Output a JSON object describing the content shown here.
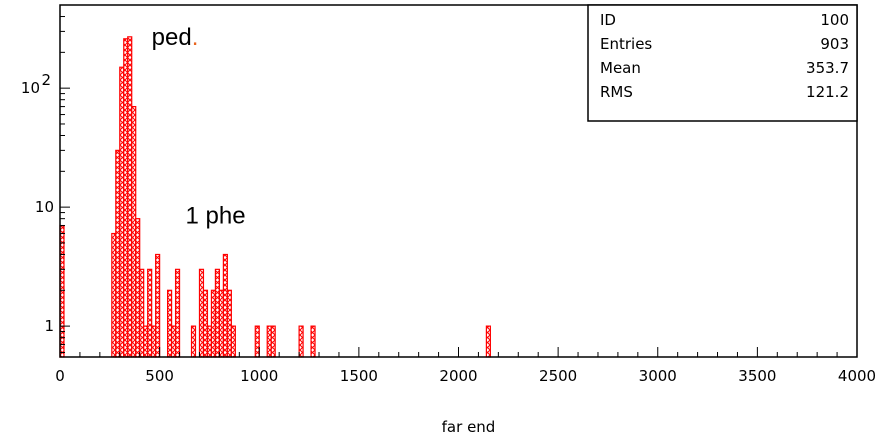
{
  "chart_data": {
    "type": "bar",
    "xlabel": "far end",
    "ylabel": "",
    "title": "",
    "xlim": [
      0,
      4000
    ],
    "ylim": [
      0.55,
      500
    ],
    "yscale": "log",
    "bin_width": 20,
    "x_ticks": [
      "0",
      "500",
      "1000",
      "1500",
      "2000",
      "2500",
      "3000",
      "3500",
      "4000"
    ],
    "y_ticks": [
      {
        "value": 1,
        "label": "1"
      },
      {
        "value": 10,
        "label": "10"
      },
      {
        "value": 100,
        "label": "10",
        "exponent": "2"
      }
    ],
    "bins": [
      {
        "x": 0,
        "y": 7
      },
      {
        "x": 260,
        "y": 6
      },
      {
        "x": 280,
        "y": 30
      },
      {
        "x": 300,
        "y": 150
      },
      {
        "x": 320,
        "y": 260
      },
      {
        "x": 340,
        "y": 270
      },
      {
        "x": 360,
        "y": 70
      },
      {
        "x": 380,
        "y": 8
      },
      {
        "x": 400,
        "y": 3
      },
      {
        "x": 420,
        "y": 1
      },
      {
        "x": 440,
        "y": 3
      },
      {
        "x": 460,
        "y": 1
      },
      {
        "x": 480,
        "y": 4
      },
      {
        "x": 540,
        "y": 2
      },
      {
        "x": 560,
        "y": 1
      },
      {
        "x": 580,
        "y": 3
      },
      {
        "x": 660,
        "y": 1
      },
      {
        "x": 700,
        "y": 3
      },
      {
        "x": 720,
        "y": 2
      },
      {
        "x": 740,
        "y": 1
      },
      {
        "x": 760,
        "y": 2
      },
      {
        "x": 780,
        "y": 3
      },
      {
        "x": 800,
        "y": 2
      },
      {
        "x": 820,
        "y": 4
      },
      {
        "x": 840,
        "y": 2
      },
      {
        "x": 860,
        "y": 1
      },
      {
        "x": 980,
        "y": 1
      },
      {
        "x": 1040,
        "y": 1
      },
      {
        "x": 1060,
        "y": 1
      },
      {
        "x": 1200,
        "y": 1
      },
      {
        "x": 1260,
        "y": 1
      },
      {
        "x": 2140,
        "y": 1
      }
    ],
    "bar_color": "#ff0000",
    "annotations": [
      {
        "text": "ped",
        "suffix": ".",
        "suffix_color": "#e8641e",
        "x": 460,
        "y": 270
      },
      {
        "text": "1 phe",
        "x": 630,
        "y": 8.5
      }
    ],
    "stats_box": [
      {
        "label": "ID",
        "value": "100"
      },
      {
        "label": "Entries",
        "value": "903"
      },
      {
        "label": "Mean",
        "value": "353.7"
      },
      {
        "label": "RMS",
        "value": "121.2"
      }
    ]
  }
}
